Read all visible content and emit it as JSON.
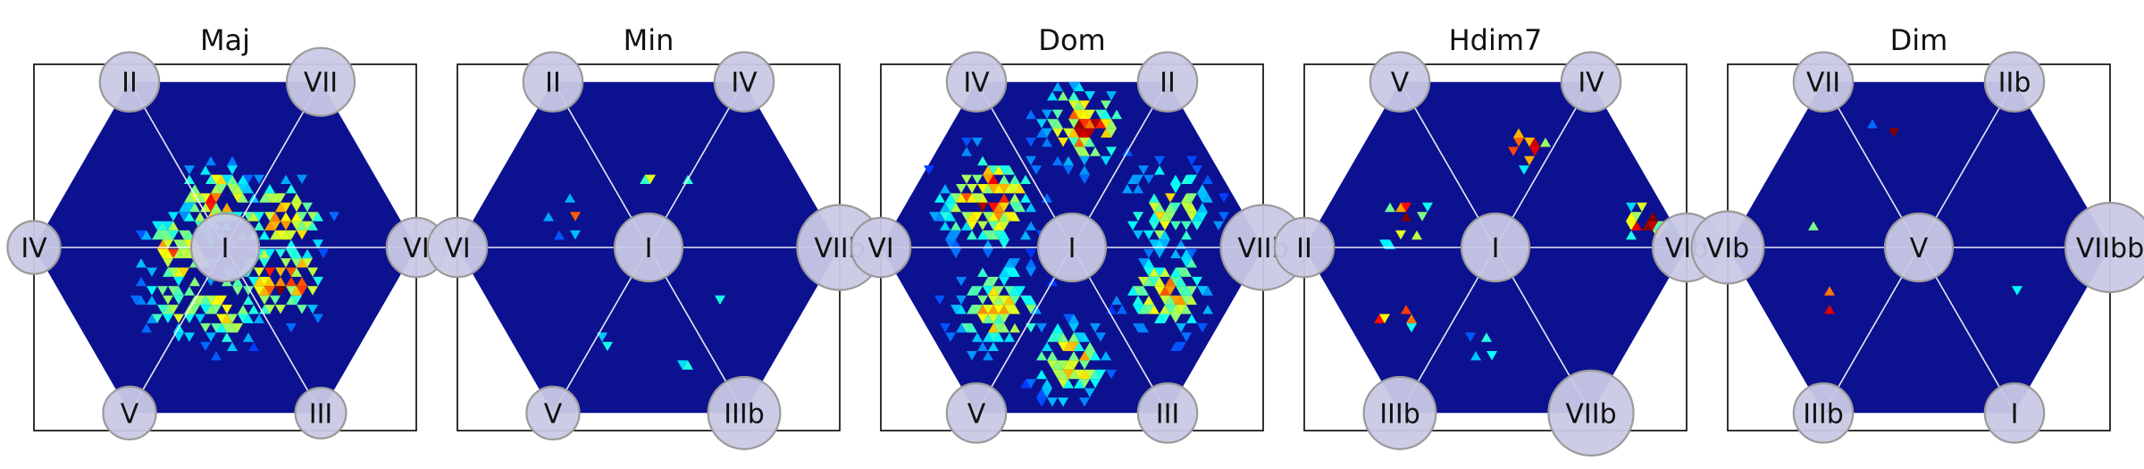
{
  "chart_data": [
    {
      "type": "heatmap",
      "title": "Maj",
      "center_label": "I",
      "vertex_labels": {
        "top_left": "II",
        "top_right": "VII",
        "left": "IV",
        "right": "VI",
        "bottom_left": "V",
        "bottom_right": "III"
      },
      "vertex_weights": {
        "center": 0.5,
        "top_left": 0.3,
        "top_right": 0.5,
        "left": 0.15,
        "right": 0.3,
        "bottom_left": 0.15,
        "bottom_right": 0.1
      },
      "hotspots": [
        {
          "angle": 330,
          "r": 0.35,
          "spread": 0.13,
          "peak": 0.75,
          "density": 0.8
        },
        {
          "angle": 25,
          "r": 0.33,
          "spread": 0.14,
          "peak": 0.6,
          "density": 0.75
        },
        {
          "angle": 100,
          "r": 0.25,
          "spread": 0.12,
          "peak": 0.6,
          "density": 0.8
        },
        {
          "angle": 185,
          "r": 0.25,
          "spread": 0.12,
          "peak": 0.6,
          "density": 0.75
        },
        {
          "angle": 230,
          "r": 0.35,
          "spread": 0.13,
          "peak": 0.5,
          "density": 0.65
        },
        {
          "angle": 270,
          "r": 0.32,
          "spread": 0.13,
          "peak": 0.5,
          "density": 0.65
        }
      ]
    },
    {
      "type": "heatmap",
      "title": "Min",
      "center_label": "I",
      "vertex_labels": {
        "top_left": "II",
        "top_right": "IV",
        "left": "VI",
        "right": "VIIb",
        "bottom_left": "V",
        "bottom_right": "IIIb"
      },
      "vertex_weights": {
        "center": 0.5,
        "top_left": 0.3,
        "top_right": 0.3,
        "left": 0.3,
        "right": 0.9,
        "bottom_left": 0.15,
        "bottom_right": 0.6
      },
      "hotspots": [
        {
          "angle": 90,
          "r": 0.35,
          "spread": 0.04,
          "peak": 0.5,
          "density": 0.25
        },
        {
          "angle": 60,
          "r": 0.45,
          "spread": 0.05,
          "peak": 0.5,
          "density": 0.2
        },
        {
          "angle": 160,
          "r": 0.45,
          "spread": 0.05,
          "peak": 0.95,
          "density": 0.25
        },
        {
          "angle": 245,
          "r": 0.55,
          "spread": 0.04,
          "peak": 0.5,
          "density": 0.25
        },
        {
          "angle": 290,
          "r": 0.6,
          "spread": 0.05,
          "peak": 0.55,
          "density": 0.3
        },
        {
          "angle": 330,
          "r": 0.45,
          "spread": 0.04,
          "peak": 0.45,
          "density": 0.25
        }
      ]
    },
    {
      "type": "heatmap",
      "title": "Dom",
      "center_label": "I",
      "vertex_labels": {
        "top_left": "IV",
        "top_right": "II",
        "left": "VI",
        "right": "VIIb",
        "bottom_left": "V",
        "bottom_right": "III"
      },
      "vertex_weights": {
        "center": 0.5,
        "top_left": 0.3,
        "top_right": 0.3,
        "left": 0.3,
        "right": 0.9,
        "bottom_left": 0.3,
        "bottom_right": 0.3
      },
      "hotspots": [
        {
          "angle": 150,
          "r": 0.5,
          "spread": 0.16,
          "peak": 0.7,
          "density": 0.85
        },
        {
          "angle": 85,
          "r": 0.65,
          "spread": 0.13,
          "peak": 0.72,
          "density": 0.85
        },
        {
          "angle": 20,
          "r": 0.55,
          "spread": 0.15,
          "peak": 0.5,
          "density": 0.75
        },
        {
          "angle": 335,
          "r": 0.55,
          "spread": 0.15,
          "peak": 0.55,
          "density": 0.75
        },
        {
          "angle": 270,
          "r": 0.6,
          "spread": 0.13,
          "peak": 0.55,
          "density": 0.7
        },
        {
          "angle": 220,
          "r": 0.5,
          "spread": 0.15,
          "peak": 0.55,
          "density": 0.75
        }
      ]
    },
    {
      "type": "heatmap",
      "title": "Hdim7",
      "center_label": "I",
      "vertex_labels": {
        "top_left": "V",
        "top_right": "IV",
        "left": "II",
        "right": "VIb",
        "bottom_left": "IIIb",
        "bottom_right": "VIIb"
      },
      "vertex_weights": {
        "center": 0.5,
        "top_left": 0.3,
        "top_right": 0.3,
        "left": 0.3,
        "right": 0.5,
        "bottom_left": 0.6,
        "bottom_right": 0.9
      },
      "hotspots": [
        {
          "angle": 75,
          "r": 0.55,
          "spread": 0.08,
          "peak": 0.95,
          "density": 0.3
        },
        {
          "angle": 165,
          "r": 0.5,
          "spread": 0.09,
          "peak": 0.95,
          "density": 0.3
        },
        {
          "angle": 215,
          "r": 0.65,
          "spread": 0.08,
          "peak": 0.95,
          "density": 0.3
        },
        {
          "angle": 265,
          "r": 0.55,
          "spread": 0.06,
          "peak": 0.5,
          "density": 0.3
        },
        {
          "angle": 10,
          "r": 0.8,
          "spread": 0.07,
          "peak": 0.95,
          "density": 0.35
        }
      ]
    },
    {
      "type": "heatmap",
      "title": "Dim",
      "center_label": "V",
      "vertex_labels": {
        "top_left": "VII",
        "top_right": "IIb",
        "left": "VIb",
        "right": "VIIbb",
        "bottom_left": "IIIb",
        "bottom_right": "I"
      },
      "vertex_weights": {
        "center": 0.5,
        "top_left": 0.3,
        "top_right": 0.3,
        "left": 0.6,
        "right": 1.0,
        "bottom_left": 0.3,
        "bottom_right": 0.3
      },
      "hotspots": [
        {
          "angle": 100,
          "r": 0.65,
          "spread": 0.06,
          "peak": 0.95,
          "density": 0.15
        },
        {
          "angle": 160,
          "r": 0.55,
          "spread": 0.06,
          "peak": 0.95,
          "density": 0.15
        },
        {
          "angle": 210,
          "r": 0.55,
          "spread": 0.06,
          "peak": 0.95,
          "density": 0.15
        },
        {
          "angle": 275,
          "r": 0.8,
          "spread": 0.05,
          "peak": 0.95,
          "density": 0.2
        },
        {
          "angle": 345,
          "r": 0.55,
          "spread": 0.05,
          "peak": 0.95,
          "density": 0.2
        }
      ]
    }
  ]
}
